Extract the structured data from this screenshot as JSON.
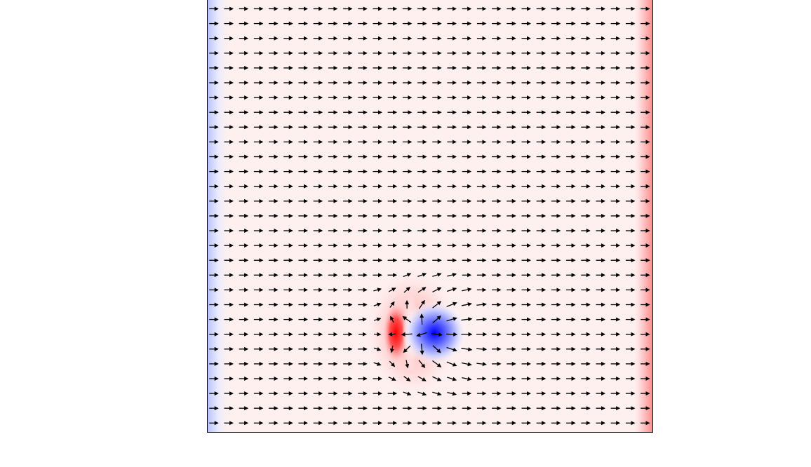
{
  "figure": {
    "kind": "vector-field-over-scalar-colormap",
    "colors": {
      "positive": "#ff0000",
      "negative": "#0000ff",
      "neutral": "#ffffff",
      "background_tint": "#fff0f0",
      "arrow": "#000000",
      "frame": "#000000"
    },
    "grid": {
      "columns": 30,
      "rows": 30
    },
    "uniform_flow": {
      "direction": "right"
    },
    "disturbance": {
      "type": "dipole",
      "negative_lobe_color": "#0000ff",
      "positive_lobe_color": "#ff0000",
      "center_cell": [
        14,
        22
      ]
    }
  }
}
